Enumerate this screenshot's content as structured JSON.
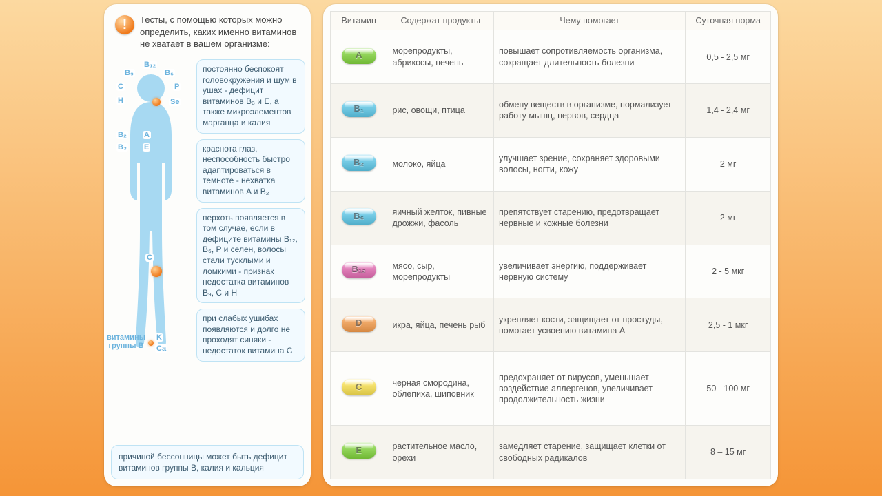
{
  "left": {
    "intro": "Тесты, с помощью которых можно определить, каких именно витаминов не хватает в вашем организме:",
    "callouts": [
      "постоянно беспокоят головокружения и шум в ушах - дефицит витаминов B₃ и E, а также микроэлементов марганца и калия",
      "краснота глаз, неспособность быстро адаптироваться в темноте - нехватка витаминов A и B₂",
      "перхоть появляется в том случае, если в дефиците витамины B₁₂, B₆, P и селен, волосы стали тусклыми и ломкими - признак недостатка витаминов B₉, C и H",
      "при слабых ушибах появляются и долго не проходят синяки - недостаток витамина C"
    ],
    "callout_wide": "причиной бессонницы может быть дефицит витаминов группы B, калия и кальция",
    "figure_labels": {
      "B12": "B₁₂",
      "B9": "B₉",
      "B6": "B₆",
      "C": "C",
      "P": "P",
      "H": "H",
      "Se": "Se",
      "B2": "B₂",
      "A": "A",
      "B3": "B₃",
      "E": "E",
      "Cknee": "C",
      "group": "витамины группы B",
      "K": "K",
      "Ca": "Ca"
    }
  },
  "table": {
    "headers": [
      "Витамин",
      "Содержат продукты",
      "Чему помогает",
      "Суточная норма"
    ],
    "col_widths": [
      "80px",
      "150px",
      "270px",
      "120px"
    ],
    "rows": [
      {
        "vit": "A",
        "color": "#7fd13b",
        "foods": "морепродукты, абрикосы, печень",
        "benefit": "повышает сопротивляемость организма, сокращает длительность болезни",
        "dose": "0,5 - 2,5 мг"
      },
      {
        "vit": "B₁",
        "color": "#5cc6e6",
        "foods": "рис, овощи, птица",
        "benefit": "обмену веществ в организме, нормализует работу мышц, нервов, сердца",
        "dose": "1,4 - 2,4 мг"
      },
      {
        "vit": "B₂",
        "color": "#5cc6e6",
        "foods": "молоко, яйца",
        "benefit": "улучшает зрение, сохраняет здоровыми волосы, ногти, кожу",
        "dose": "2 мг"
      },
      {
        "vit": "B₆",
        "color": "#5cc6e6",
        "foods": "яичный желток, пивные дрожжи, фасоль",
        "benefit": "препятствует старению, предотвращает нервные и кожные болезни",
        "dose": "2 мг"
      },
      {
        "vit": "B₁₂",
        "color": "#e06ab0",
        "foods": "мясо, сыр, морепродукты",
        "benefit": "увеличивает энергию, поддерживает нервную систему",
        "dose": "2 - 5 мкг"
      },
      {
        "vit": "D",
        "color": "#f29a4a",
        "foods": "икра, яйца, печень рыб",
        "benefit": "укрепляет кости, защищает от простуды, помогает усвоению витамина A",
        "dose": "2,5 - 1 мкг"
      },
      {
        "vit": "C",
        "color": "#f6de4e",
        "foods": "черная смородина, облепиха, шиповник",
        "benefit": "предохраняет от вирусов, уменьшает воздействие аллергенов, увеличивает продолжительность жизни",
        "dose": "50 - 100 мг"
      },
      {
        "vit": "E",
        "color": "#7fd13b",
        "foods": "растительное масло, орехи",
        "benefit": "замедляет старение, защищает клетки от свободных радикалов",
        "dose": "8 – 15 мг"
      }
    ]
  },
  "colors": {
    "panel_bg": "#fdfdfb",
    "page_gradient_top": "#fcd9a0",
    "page_gradient_bottom": "#f59537",
    "callout_bg": "#f2faff",
    "callout_border": "#bfe3f4",
    "silhouette": "#a7d9f2",
    "orange": "#f07a1b"
  }
}
